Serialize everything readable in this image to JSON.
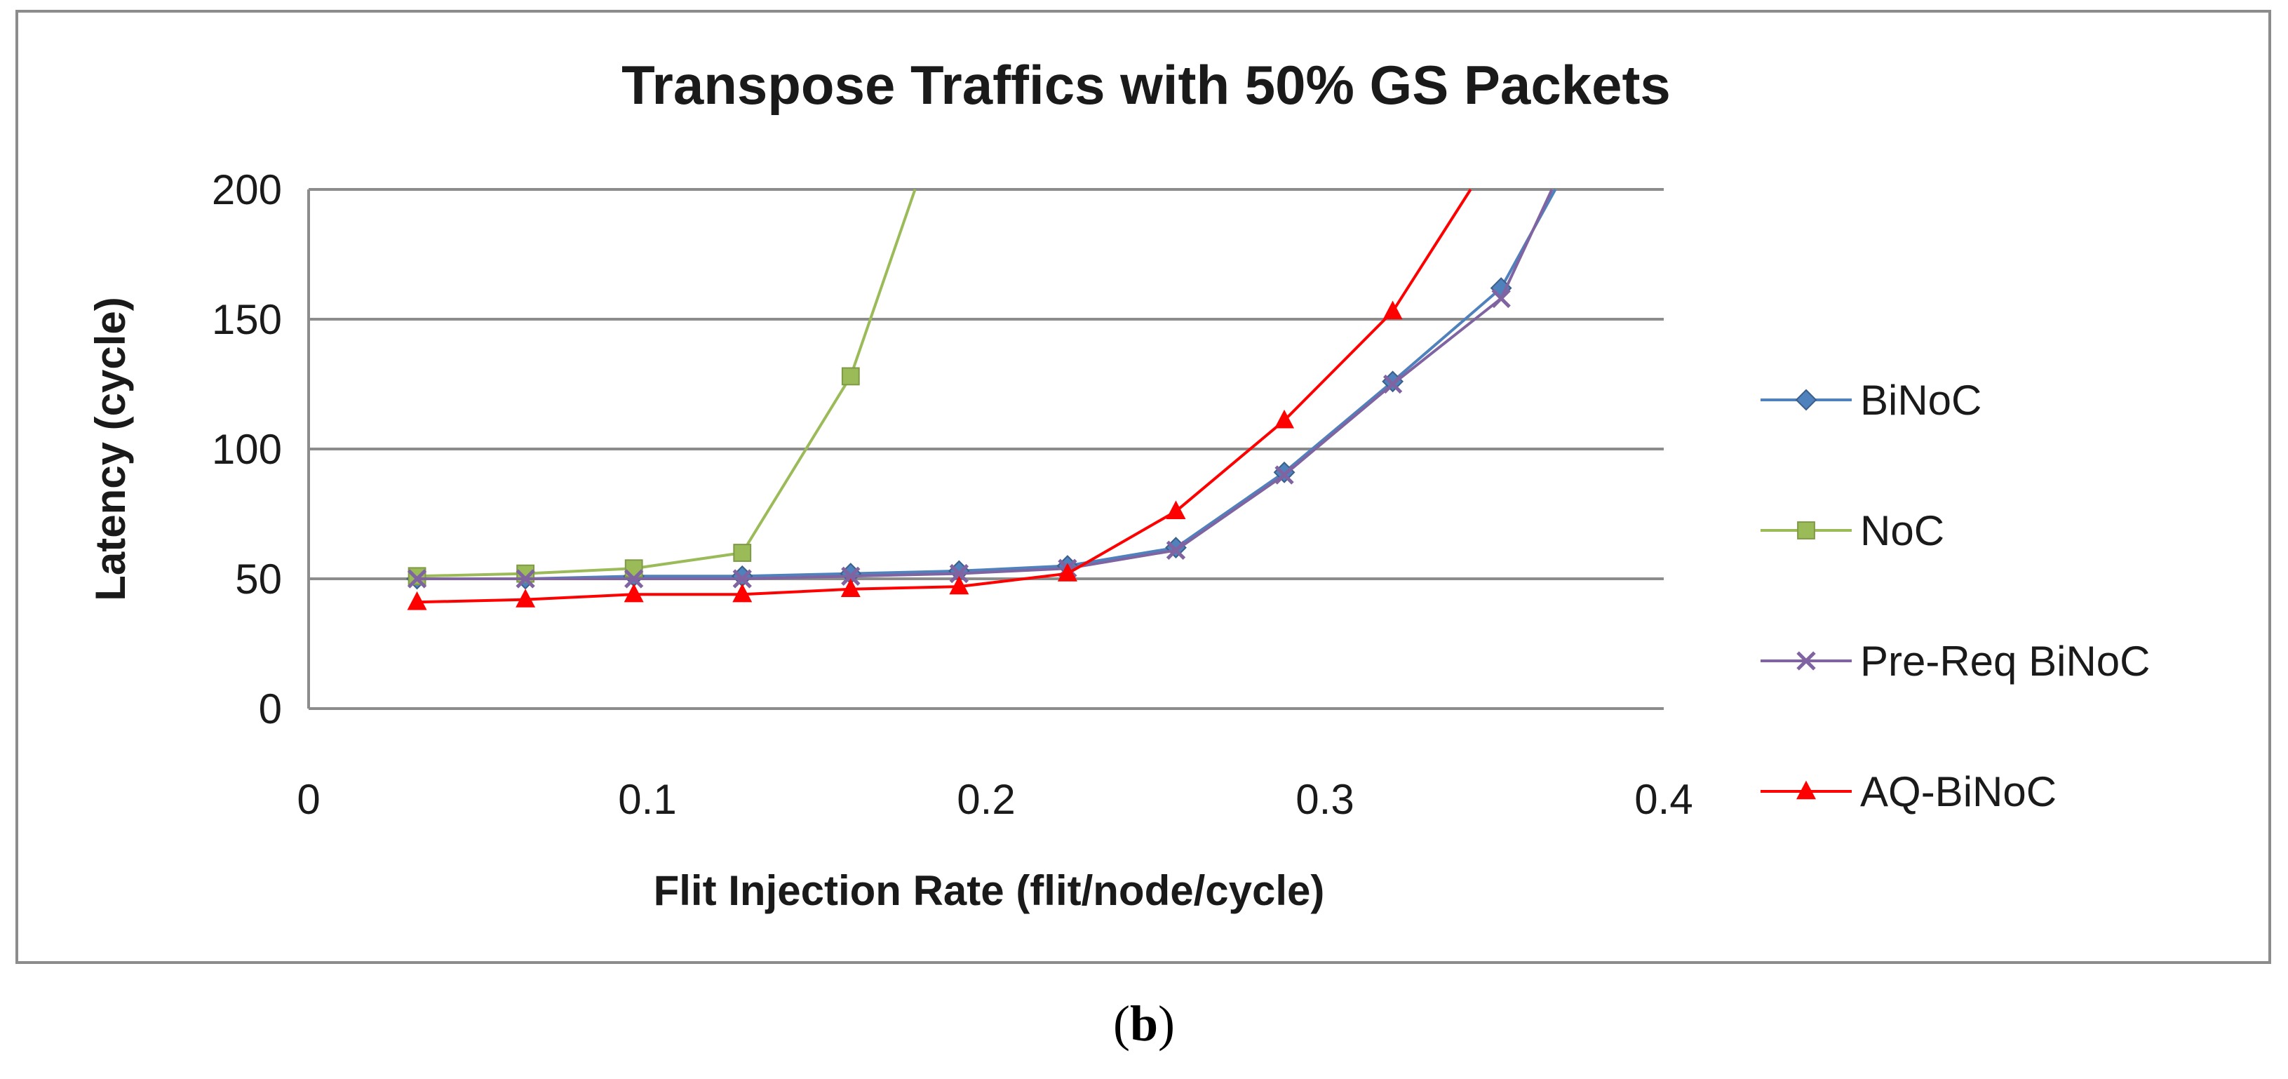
{
  "chart_data": {
    "type": "line",
    "title": "Transpose Traffics with 50% GS Packets",
    "xlabel": "Flit Injection Rate (flit/node/cycle)",
    "ylabel": "Latency (cycle)",
    "xlim": [
      0,
      0.4
    ],
    "ylim": [
      0,
      200
    ],
    "xticks": [
      0,
      0.1,
      0.2,
      0.3,
      0.4
    ],
    "xtick_labels": [
      "0",
      "0.1",
      "0.2",
      "0.3",
      "0.4"
    ],
    "yticks": [
      0,
      50,
      100,
      150,
      200
    ],
    "ytick_labels": [
      "0",
      "50",
      "100",
      "150",
      "200"
    ],
    "grid": "horizontal",
    "legend_position": "right",
    "series": [
      {
        "name": "BiNoC",
        "color": "#4f81bd",
        "marker": "diamond",
        "x": [
          0.032,
          0.064,
          0.096,
          0.128,
          0.16,
          0.192,
          0.224,
          0.256,
          0.288,
          0.32,
          0.352,
          0.368
        ],
        "y": [
          50,
          50,
          51,
          51,
          52,
          53,
          55,
          62,
          91,
          126,
          162,
          200
        ]
      },
      {
        "name": "NoC",
        "color": "#9bbb59",
        "marker": "square",
        "x": [
          0.032,
          0.064,
          0.096,
          0.128,
          0.16,
          0.179
        ],
        "y": [
          51,
          52,
          54,
          60,
          128,
          200
        ]
      },
      {
        "name": "Pre-Req BiNoC",
        "color": "#8064a2",
        "marker": "x",
        "x": [
          0.032,
          0.064,
          0.096,
          0.128,
          0.16,
          0.192,
          0.224,
          0.256,
          0.288,
          0.32,
          0.352,
          0.367
        ],
        "y": [
          50,
          50,
          50,
          50,
          51,
          52,
          54,
          61,
          90,
          125,
          158,
          200
        ]
      },
      {
        "name": "AQ-BiNoC",
        "color": "#ff0000",
        "marker": "triangle",
        "x": [
          0.032,
          0.064,
          0.096,
          0.128,
          0.16,
          0.192,
          0.224,
          0.256,
          0.288,
          0.32,
          0.343
        ],
        "y": [
          41,
          42,
          44,
          44,
          46,
          47,
          52,
          76,
          111,
          153,
          200
        ]
      }
    ]
  },
  "caption": {
    "open": "(",
    "letter": "b",
    "close": ")"
  }
}
